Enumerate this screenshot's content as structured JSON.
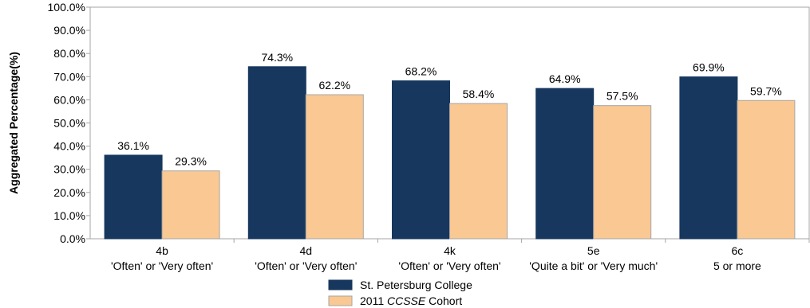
{
  "chart_data": {
    "type": "bar",
    "ylabel": "Aggregated Percentage(%)",
    "xlabel": "",
    "title": "",
    "ylim": [
      0,
      100
    ],
    "yticks": [
      "0.0%",
      "10.0%",
      "20.0%",
      "30.0%",
      "40.0%",
      "50.0%",
      "60.0%",
      "70.0%",
      "80.0%",
      "90.0%",
      "100.0%"
    ],
    "categories": [
      {
        "code": "4b",
        "desc": "'Often' or 'Very often'"
      },
      {
        "code": "4d",
        "desc": "'Often' or 'Very often'"
      },
      {
        "code": "4k",
        "desc": "'Often' or 'Very often'"
      },
      {
        "code": "5e",
        "desc": "'Quite a bit' or 'Very much'"
      },
      {
        "code": "6c",
        "desc": "5 or more"
      }
    ],
    "series": [
      {
        "name": "St. Petersburg College",
        "color": "#17375e",
        "values": [
          36.1,
          74.3,
          68.2,
          64.9,
          69.9
        ],
        "labels": [
          "36.1%",
          "74.3%",
          "68.2%",
          "64.9%",
          "69.9%"
        ]
      },
      {
        "name_prefix": "2011 ",
        "name_italic": "CCSSE",
        "name_suffix": " Cohort",
        "color": "#fac892",
        "values": [
          29.3,
          62.2,
          58.4,
          57.5,
          59.7
        ],
        "labels": [
          "29.3%",
          "62.2%",
          "58.4%",
          "57.5%",
          "59.7%"
        ]
      }
    ],
    "grid": false,
    "legend_position": "bottom"
  }
}
